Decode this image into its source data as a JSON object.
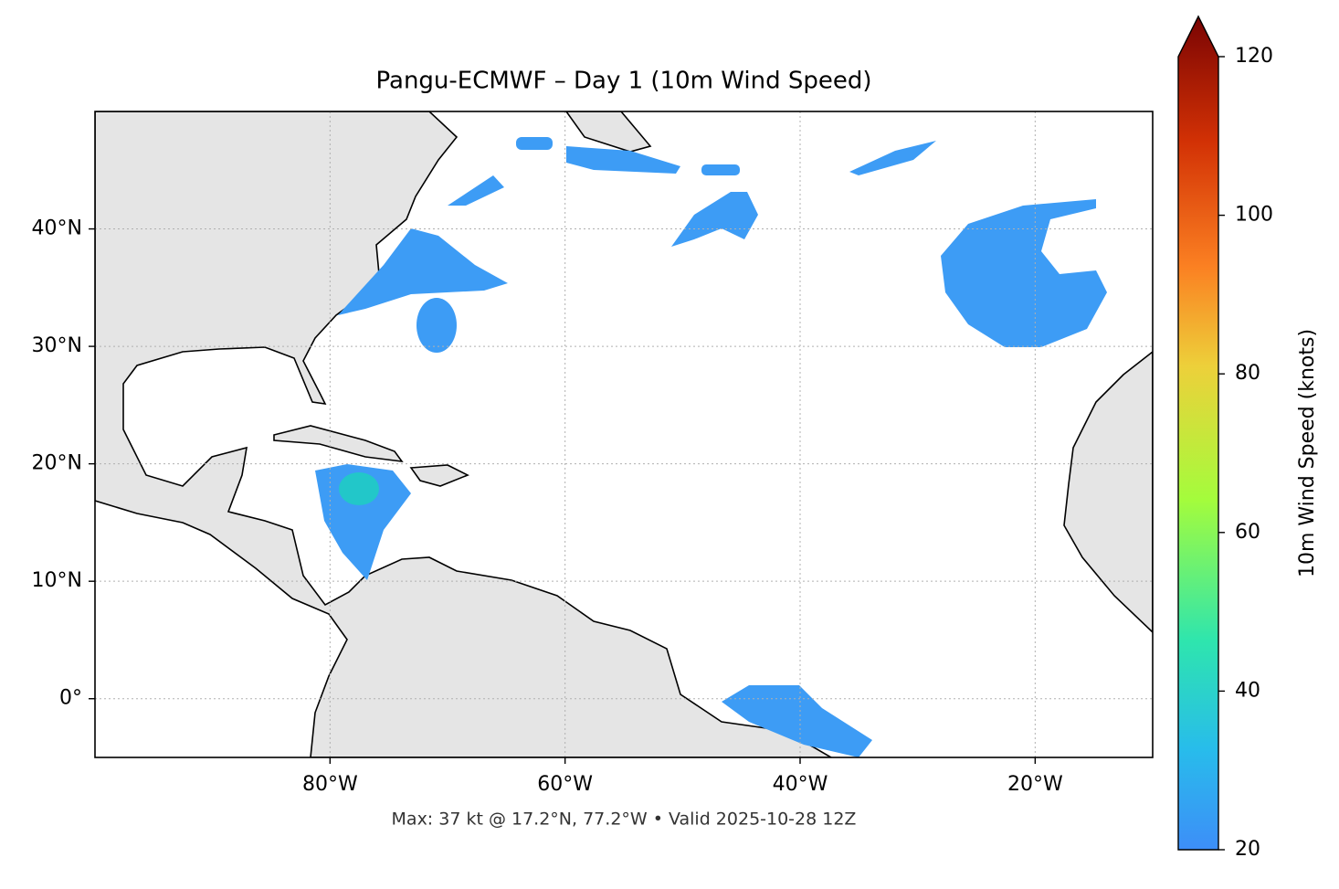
{
  "chart_data": {
    "type": "map",
    "title": "Pangu-ECMWF – Day 1 (10m Wind Speed)",
    "caption": "Max: 37 kt @ 17.2°N, 77.2°W • Valid 2025-10-28 12Z",
    "xlim": [
      -100,
      -10
    ],
    "ylim": [
      -5,
      50
    ],
    "xticks": [
      {
        "value": -80,
        "label": "80°W"
      },
      {
        "value": -60,
        "label": "60°W"
      },
      {
        "value": -40,
        "label": "40°W"
      },
      {
        "value": -20,
        "label": "20°W"
      }
    ],
    "yticks": [
      {
        "value": 0,
        "label": "0°"
      },
      {
        "value": 10,
        "label": "10°N"
      },
      {
        "value": 20,
        "label": "20°N"
      },
      {
        "value": 30,
        "label": "30°N"
      },
      {
        "value": 40,
        "label": "40°N"
      }
    ],
    "grid": true,
    "colorbar": {
      "label": "10m Wind Speed (knots)",
      "lim": [
        20,
        120
      ],
      "ticks": [
        20,
        40,
        60,
        80,
        100,
        120
      ]
    }
  }
}
